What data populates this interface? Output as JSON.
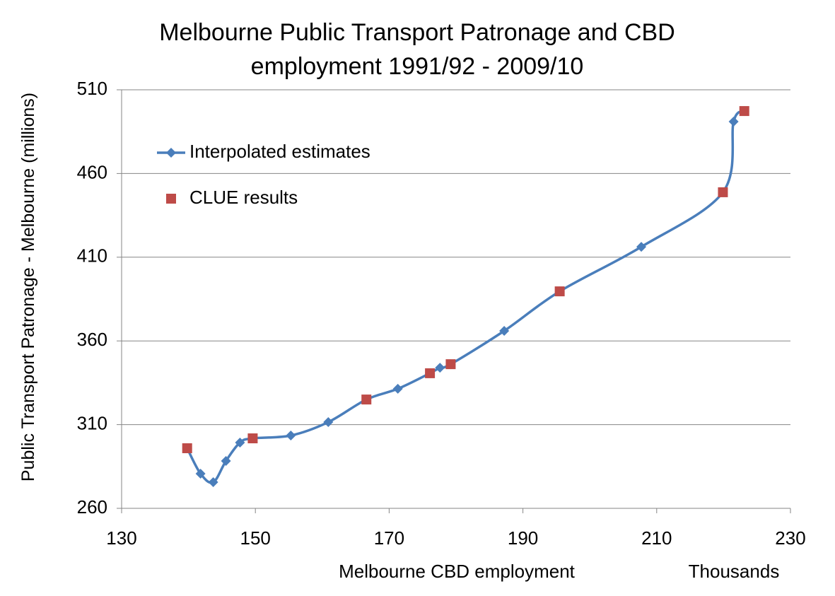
{
  "chart_data": {
    "type": "scatter",
    "title": "Melbourne Public Transport Patronage and CBD employment 1991/92 - 2009/10",
    "x_label": "Melbourne  CBD employment",
    "x_unit_label": "Thousands",
    "y_label": "Public Transport Patronage - Melbourne (millions)",
    "xlim": [
      130,
      230
    ],
    "xticks": [
      130,
      150,
      170,
      190,
      210,
      230
    ],
    "ylim": [
      260,
      510
    ],
    "yticks": [
      260,
      310,
      360,
      410,
      460,
      510
    ],
    "grid": true,
    "legend": "upper left",
    "series": [
      {
        "name": "Interpolated estimates",
        "color": "#4a7ebb",
        "line": true,
        "marker": "diamond",
        "x": [
          139.8,
          141.8,
          143.7,
          145.6,
          147.7,
          149.6,
          155.3,
          160.9,
          166.6,
          171.3,
          176.1,
          177.6,
          179.2,
          187.2,
          195.5,
          207.7,
          219.9,
          221.5,
          223.1
        ],
        "values": [
          295.9,
          280.7,
          275.6,
          288.3,
          299.3,
          301.8,
          303.5,
          311.5,
          325,
          331.4,
          340.7,
          344,
          346.1,
          366,
          389.6,
          416.2,
          448.8,
          491,
          497.3
        ]
      },
      {
        "name": "CLUE results",
        "color": "#be4b48",
        "line": false,
        "marker": "square",
        "x": [
          139.8,
          149.6,
          166.6,
          176.1,
          179.2,
          195.5,
          219.9,
          223.1
        ],
        "values": [
          295.9,
          301.8,
          325,
          340.7,
          346.1,
          389.6,
          448.8,
          497.3
        ]
      }
    ]
  }
}
